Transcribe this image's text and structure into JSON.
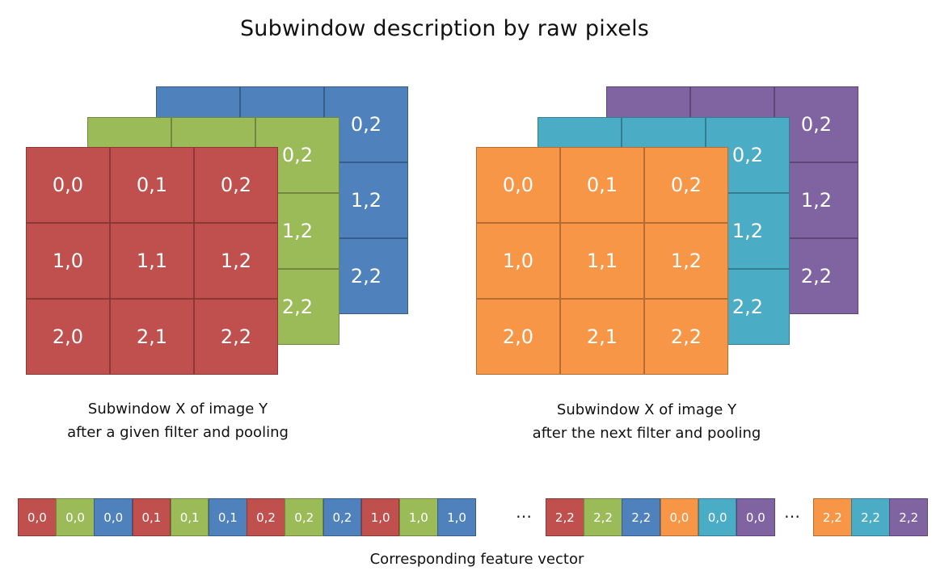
{
  "title": "Subwindow description by raw pixels",
  "colors": {
    "red": {
      "fill": "#c0504d",
      "border": "#8c3836"
    },
    "green": {
      "fill": "#9bbb59",
      "border": "#71893f"
    },
    "blue": {
      "fill": "#4f81bd",
      "border": "#385d8a"
    },
    "orange": {
      "fill": "#f79646",
      "border": "#b66d31"
    },
    "teal": {
      "fill": "#4bacc6",
      "border": "#357d91"
    },
    "purple": {
      "fill": "#8064a2",
      "border": "#5c4776"
    }
  },
  "stacks": [
    {
      "caption": [
        "Subwindow X of image Y",
        "after a given filter and pooling"
      ],
      "layers": [
        {
          "color": "blue",
          "labels": [
            "",
            "",
            "0,2",
            "",
            "",
            "1,2",
            "",
            "",
            "2,2"
          ]
        },
        {
          "color": "green",
          "labels": [
            "",
            "",
            "0,2",
            "",
            "",
            "1,2",
            "",
            "",
            "2,2"
          ]
        },
        {
          "color": "red",
          "labels": [
            "0,0",
            "0,1",
            "0,2",
            "1,0",
            "1,1",
            "1,2",
            "2,0",
            "2,1",
            "2,2"
          ]
        }
      ]
    },
    {
      "caption": [
        "Subwindow X of image Y",
        "after the next filter and pooling"
      ],
      "layers": [
        {
          "color": "purple",
          "labels": [
            "",
            "",
            "0,2",
            "",
            "",
            "1,2",
            "",
            "",
            "2,2"
          ]
        },
        {
          "color": "teal",
          "labels": [
            "",
            "",
            "0,2",
            "",
            "",
            "1,2",
            "",
            "",
            "2,2"
          ]
        },
        {
          "color": "orange",
          "labels": [
            "0,0",
            "0,1",
            "0,2",
            "1,0",
            "1,1",
            "1,2",
            "2,0",
            "2,1",
            "2,2"
          ]
        }
      ]
    }
  ],
  "vector": {
    "groups": [
      [
        {
          "label": "0,0",
          "color": "red"
        },
        {
          "label": "0,0",
          "color": "green"
        },
        {
          "label": "0,0",
          "color": "blue"
        },
        {
          "label": "0,1",
          "color": "red"
        },
        {
          "label": "0,1",
          "color": "green"
        },
        {
          "label": "0,1",
          "color": "blue"
        },
        {
          "label": "0,2",
          "color": "red"
        },
        {
          "label": "0,2",
          "color": "green"
        },
        {
          "label": "0,2",
          "color": "blue"
        },
        {
          "label": "1,0",
          "color": "red"
        },
        {
          "label": "1,0",
          "color": "green"
        },
        {
          "label": "1,0",
          "color": "blue"
        }
      ],
      [
        {
          "label": "2,2",
          "color": "red"
        },
        {
          "label": "2,2",
          "color": "green"
        },
        {
          "label": "2,2",
          "color": "blue"
        },
        {
          "label": "0,0",
          "color": "orange"
        },
        {
          "label": "0,0",
          "color": "teal"
        },
        {
          "label": "0,0",
          "color": "purple"
        }
      ],
      [
        {
          "label": "2,2",
          "color": "orange"
        },
        {
          "label": "2,2",
          "color": "teal"
        },
        {
          "label": "2,2",
          "color": "purple"
        }
      ]
    ],
    "ellipsis": "…",
    "caption": "Corresponding feature vector"
  }
}
